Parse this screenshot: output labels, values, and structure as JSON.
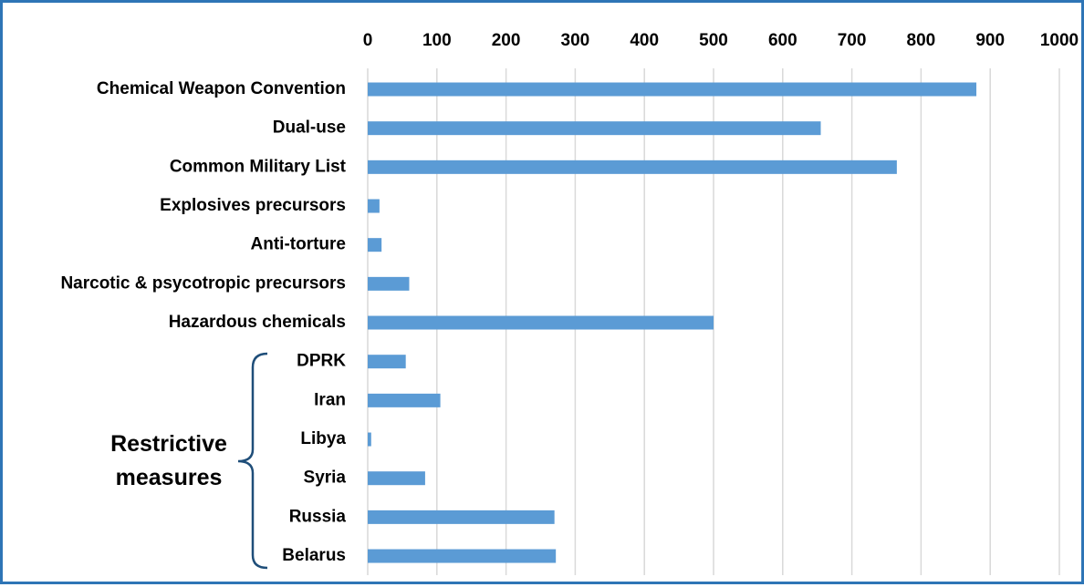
{
  "colors": {
    "bar": "#5b9bd5",
    "grid": "#d9d9d9",
    "frame": "#2e75b6",
    "brace": "#1f4e79"
  },
  "chart_data": {
    "type": "bar",
    "orientation": "horizontal",
    "categories": [
      "Chemical Weapon Convention",
      "Dual-use ",
      "Common Military List",
      "Explosives precursors",
      "Anti-torture",
      "Narcotic & psycotropic precursors",
      "Hazardous chemicals",
      "DPRK",
      "Iran",
      "Libya",
      "Syria",
      "Russia",
      "Belarus"
    ],
    "values": [
      880,
      655,
      765,
      17,
      20,
      60,
      500,
      55,
      105,
      5,
      83,
      270,
      272
    ],
    "xlim": [
      0,
      1000
    ],
    "x_ticks": [
      0,
      100,
      200,
      300,
      400,
      500,
      600,
      700,
      800,
      900,
      1000
    ],
    "axis_position": "top",
    "grid": true,
    "legend": "none",
    "group_label": [
      "Restrictive",
      "measures"
    ],
    "group_members": [
      "DPRK",
      "Iran",
      "Libya",
      "Syria",
      "Russia",
      "Belarus"
    ]
  }
}
